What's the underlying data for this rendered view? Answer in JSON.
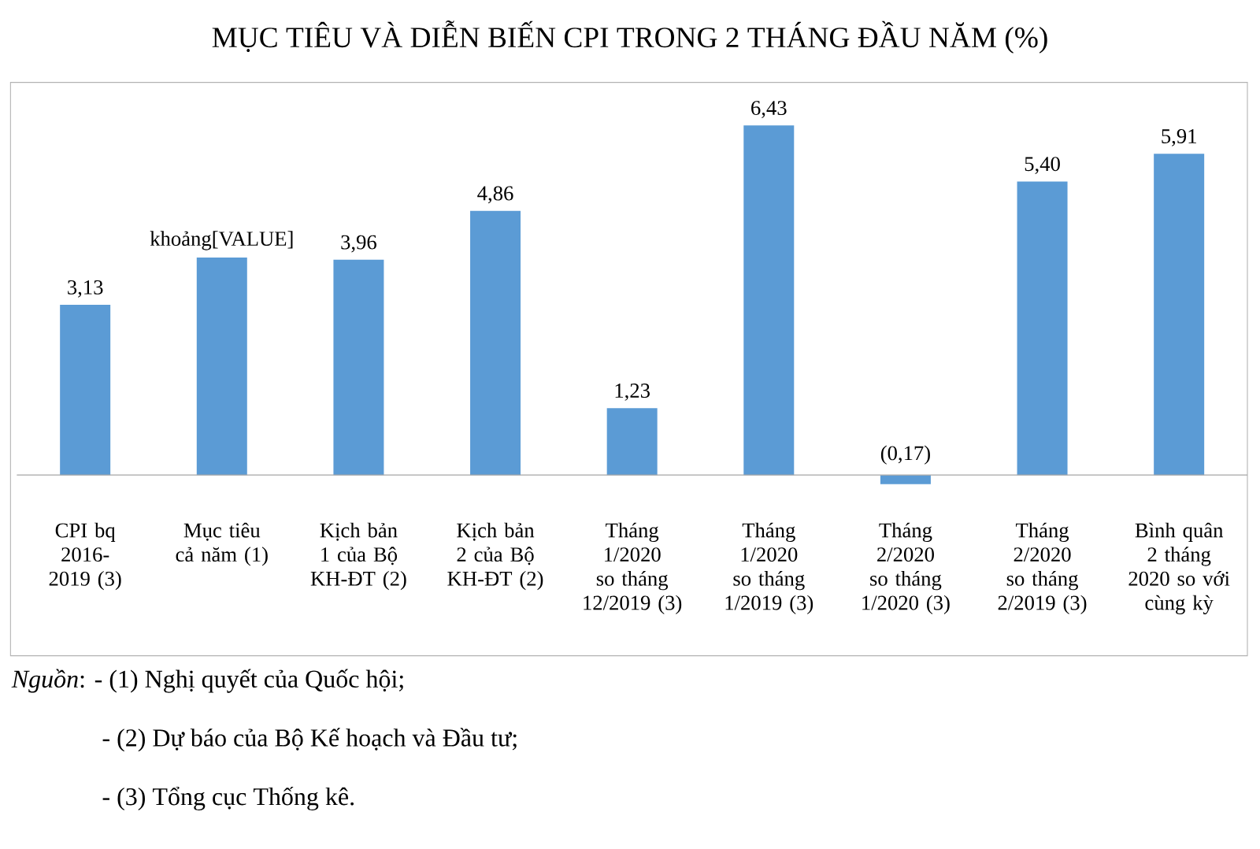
{
  "chart_data": {
    "type": "bar",
    "title": "MỤC TIÊU VÀ DIỄN BIẾN CPI TRONG 2 THÁNG ĐẦU NĂM (%)",
    "categories": [
      "CPI bq 2016-2019 (3)",
      "Mục tiêu cả năm (1)",
      "Kịch bản 1 của Bộ KH-ĐT (2)",
      "Kịch bản 2 của Bộ KH-ĐT (2)",
      "Tháng 1/2020 so tháng 12/2019 (3)",
      "Tháng 1/2020 so tháng 1/2019 (3)",
      "Tháng 2/2020 so tháng 1/2020 (3)",
      "Tháng 2/2020 so tháng 2/2019 (3)",
      "Bình quân 2 tháng 2020 so với cùng kỳ"
    ],
    "values": [
      3.13,
      4.0,
      3.96,
      4.86,
      1.23,
      6.43,
      -0.17,
      5.4,
      5.91
    ],
    "value_labels": [
      "3,13",
      "khoảng[VALUE]",
      "3,96",
      "4,86",
      "1,23",
      "6,43",
      "(0,17)",
      "5,40",
      "5,91"
    ],
    "color": "#5b9bd5",
    "annotations": [
      "*Nguồn*: - (1) Nghị quyết của Quốc hội;",
      "- (2) Dự báo của Bộ Kế hoạch và Đầu tư;",
      "- (3) Tổng cục Thống kê."
    ]
  }
}
